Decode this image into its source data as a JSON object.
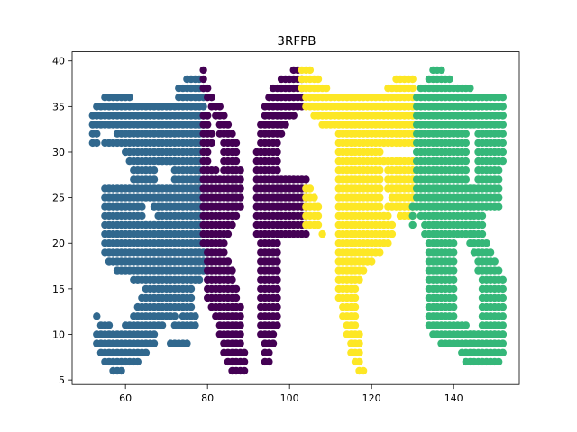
{
  "chart_data": {
    "type": "scatter",
    "title": "3RFPB",
    "xlabel": "",
    "ylabel": "",
    "xlim": [
      47,
      156
    ],
    "ylim": [
      4.5,
      41
    ],
    "xticks": [
      60,
      80,
      100,
      120,
      140
    ],
    "yticks": [
      5,
      10,
      15,
      20,
      25,
      30,
      35,
      40
    ],
    "grid": false,
    "legend": "none",
    "point_spacing": [
      1,
      1
    ],
    "series": [
      {
        "color": "#31688e",
        "runs": [
          [
            52,
            31,
            53
          ],
          [
            52,
            32,
            53
          ],
          [
            52,
            33,
            79
          ],
          [
            52,
            34,
            79
          ],
          [
            53,
            35,
            79
          ],
          [
            55,
            36,
            61
          ],
          [
            73,
            36,
            79
          ],
          [
            73,
            37,
            79
          ],
          [
            75,
            38,
            78
          ],
          [
            55,
            31,
            78
          ],
          [
            58,
            32,
            78
          ],
          [
            60,
            30,
            78
          ],
          [
            61,
            29,
            72
          ],
          [
            62,
            28,
            67
          ],
          [
            62,
            27,
            67
          ],
          [
            55,
            26,
            79
          ],
          [
            55,
            25,
            79
          ],
          [
            55,
            24,
            64
          ],
          [
            67,
            24,
            79
          ],
          [
            55,
            23,
            64
          ],
          [
            68,
            23,
            79
          ],
          [
            55,
            22,
            79
          ],
          [
            55,
            21,
            79
          ],
          [
            55,
            20,
            79
          ],
          [
            55,
            19,
            79
          ],
          [
            56,
            18,
            79
          ],
          [
            58,
            17,
            79
          ],
          [
            62,
            16,
            78
          ],
          [
            65,
            15,
            76
          ],
          [
            64,
            14,
            76
          ],
          [
            63,
            13,
            76
          ],
          [
            62,
            12,
            72
          ],
          [
            74,
            12,
            77
          ],
          [
            60,
            11,
            69
          ],
          [
            72,
            11,
            77
          ],
          [
            53,
            10,
            67
          ],
          [
            53,
            9,
            67
          ],
          [
            71,
            9,
            75
          ],
          [
            54,
            8,
            65
          ],
          [
            55,
            7,
            63
          ],
          [
            57,
            6,
            59
          ],
          [
            53,
            12,
            53
          ],
          [
            54,
            11,
            56
          ],
          [
            72,
            28,
            78
          ],
          [
            72,
            27,
            78
          ],
          [
            69,
            29,
            78
          ]
        ]
      },
      {
        "color": "#440154",
        "runs": [
          [
            79,
            39,
            79
          ],
          [
            79,
            38,
            79
          ],
          [
            79,
            37,
            80
          ],
          [
            80,
            36,
            81
          ],
          [
            81,
            35,
            83
          ],
          [
            82,
            34,
            84
          ],
          [
            83,
            33,
            85
          ],
          [
            83,
            32,
            86
          ],
          [
            84,
            31,
            87
          ],
          [
            84,
            30,
            87
          ],
          [
            84,
            29,
            87
          ],
          [
            84,
            28,
            88
          ],
          [
            84,
            27,
            88
          ],
          [
            84,
            26,
            88
          ],
          [
            84,
            25,
            88
          ],
          [
            84,
            24,
            88
          ],
          [
            84,
            23,
            87
          ],
          [
            84,
            22,
            86
          ],
          [
            84,
            21,
            85
          ],
          [
            84,
            20,
            84
          ],
          [
            80,
            19,
            84
          ],
          [
            80,
            18,
            85
          ],
          [
            80,
            17,
            86
          ],
          [
            80,
            16,
            86
          ],
          [
            80,
            15,
            87
          ],
          [
            80,
            14,
            87
          ],
          [
            81,
            13,
            88
          ],
          [
            82,
            12,
            88
          ],
          [
            83,
            11,
            88
          ],
          [
            83,
            10,
            88
          ],
          [
            84,
            9,
            88
          ],
          [
            84,
            8,
            89
          ],
          [
            85,
            7,
            89
          ],
          [
            86,
            6,
            89
          ],
          [
            79,
            34,
            80
          ],
          [
            79,
            33,
            80
          ],
          [
            79,
            32,
            81
          ],
          [
            79,
            31,
            81
          ],
          [
            79,
            30,
            80
          ],
          [
            79,
            29,
            80
          ],
          [
            79,
            28,
            82
          ],
          [
            79,
            27,
            83
          ],
          [
            79,
            26,
            83
          ],
          [
            79,
            25,
            83
          ],
          [
            79,
            24,
            83
          ],
          [
            79,
            23,
            83
          ],
          [
            79,
            22,
            83
          ],
          [
            79,
            21,
            83
          ],
          [
            79,
            20,
            83
          ],
          [
            101,
            39,
            102
          ],
          [
            98,
            38,
            103
          ],
          [
            96,
            37,
            103
          ],
          [
            95,
            36,
            103
          ],
          [
            94,
            35,
            103
          ],
          [
            94,
            34,
            101
          ],
          [
            93,
            33,
            99
          ],
          [
            93,
            32,
            98
          ],
          [
            93,
            31,
            97
          ],
          [
            92,
            30,
            97
          ],
          [
            92,
            29,
            97
          ],
          [
            92,
            28,
            97
          ],
          [
            92,
            27,
            104
          ],
          [
            92,
            26,
            104
          ],
          [
            92,
            25,
            104
          ],
          [
            92,
            24,
            104
          ],
          [
            92,
            23,
            104
          ],
          [
            92,
            22,
            104
          ],
          [
            92,
            21,
            104
          ],
          [
            93,
            20,
            97
          ],
          [
            93,
            19,
            97
          ],
          [
            93,
            18,
            97
          ],
          [
            93,
            17,
            97
          ],
          [
            93,
            16,
            97
          ],
          [
            93,
            15,
            97
          ],
          [
            93,
            14,
            97
          ],
          [
            93,
            13,
            97
          ],
          [
            93,
            12,
            97
          ],
          [
            93,
            11,
            97
          ],
          [
            93,
            10,
            96
          ],
          [
            94,
            9,
            96
          ],
          [
            94,
            8,
            95
          ],
          [
            94,
            7,
            95
          ]
        ]
      },
      {
        "color": "#fde725",
        "runs": [
          [
            103,
            39,
            105
          ],
          [
            103,
            38,
            107
          ],
          [
            103,
            37,
            109
          ],
          [
            104,
            36,
            130
          ],
          [
            104,
            35,
            130
          ],
          [
            106,
            34,
            130
          ],
          [
            108,
            33,
            130
          ],
          [
            112,
            32,
            130
          ],
          [
            112,
            31,
            130
          ],
          [
            112,
            30,
            122
          ],
          [
            112,
            29,
            122
          ],
          [
            112,
            28,
            122
          ],
          [
            112,
            27,
            122
          ],
          [
            112,
            26,
            122
          ],
          [
            112,
            25,
            122
          ],
          [
            112,
            24,
            122
          ],
          [
            112,
            23,
            124
          ],
          [
            112,
            22,
            125
          ],
          [
            112,
            21,
            125
          ],
          [
            112,
            20,
            124
          ],
          [
            112,
            19,
            122
          ],
          [
            112,
            18,
            120
          ],
          [
            112,
            17,
            118
          ],
          [
            112,
            16,
            117
          ],
          [
            112,
            15,
            116
          ],
          [
            112,
            14,
            116
          ],
          [
            113,
            13,
            116
          ],
          [
            113,
            12,
            116
          ],
          [
            114,
            11,
            116
          ],
          [
            114,
            10,
            117
          ],
          [
            115,
            9,
            117
          ],
          [
            115,
            8,
            117
          ],
          [
            116,
            7,
            117
          ],
          [
            117,
            6,
            118
          ],
          [
            104,
            26,
            105
          ],
          [
            104,
            25,
            106
          ],
          [
            104,
            24,
            107
          ],
          [
            104,
            23,
            107
          ],
          [
            104,
            22,
            107
          ],
          [
            108,
            21,
            108
          ],
          [
            124,
            37,
            130
          ],
          [
            126,
            38,
            130
          ],
          [
            123,
            29,
            130
          ],
          [
            124,
            28,
            130
          ],
          [
            124,
            27,
            130
          ],
          [
            124,
            26,
            130
          ],
          [
            125,
            25,
            130
          ],
          [
            124,
            24,
            130
          ],
          [
            127,
            23,
            130
          ]
        ]
      },
      {
        "color": "#35b779",
        "runs": [
          [
            135,
            39,
            137
          ],
          [
            134,
            38,
            139
          ],
          [
            132,
            37,
            144
          ],
          [
            131,
            36,
            152
          ],
          [
            131,
            35,
            152
          ],
          [
            131,
            34,
            152
          ],
          [
            131,
            33,
            152
          ],
          [
            131,
            32,
            143
          ],
          [
            131,
            31,
            143
          ],
          [
            131,
            30,
            143
          ],
          [
            131,
            29,
            143
          ],
          [
            131,
            28,
            143
          ],
          [
            131,
            27,
            143
          ],
          [
            131,
            26,
            151
          ],
          [
            131,
            25,
            151
          ],
          [
            131,
            24,
            151
          ],
          [
            132,
            23,
            147
          ],
          [
            133,
            22,
            147
          ],
          [
            133,
            21,
            147
          ],
          [
            134,
            20,
            140
          ],
          [
            134,
            19,
            140
          ],
          [
            134,
            18,
            140
          ],
          [
            134,
            17,
            140
          ],
          [
            134,
            16,
            140
          ],
          [
            134,
            15,
            140
          ],
          [
            134,
            14,
            140
          ],
          [
            134,
            13,
            140
          ],
          [
            134,
            12,
            140
          ],
          [
            134,
            11,
            143
          ],
          [
            135,
            10,
            152
          ],
          [
            137,
            9,
            152
          ],
          [
            142,
            8,
            152
          ],
          [
            143,
            7,
            151
          ],
          [
            146,
            32,
            152
          ],
          [
            146,
            31,
            152
          ],
          [
            146,
            30,
            152
          ],
          [
            146,
            29,
            152
          ],
          [
            146,
            28,
            151
          ],
          [
            146,
            27,
            151
          ],
          [
            144,
            20,
            148
          ],
          [
            145,
            19,
            149
          ],
          [
            146,
            18,
            150
          ],
          [
            146,
            17,
            151
          ],
          [
            147,
            16,
            152
          ],
          [
            147,
            15,
            152
          ],
          [
            147,
            14,
            152
          ],
          [
            147,
            13,
            152
          ],
          [
            147,
            12,
            152
          ],
          [
            147,
            11,
            152
          ],
          [
            144,
            10,
            152
          ],
          [
            130,
            24,
            130
          ],
          [
            130,
            23,
            130
          ],
          [
            130,
            22,
            130
          ]
        ]
      }
    ]
  }
}
